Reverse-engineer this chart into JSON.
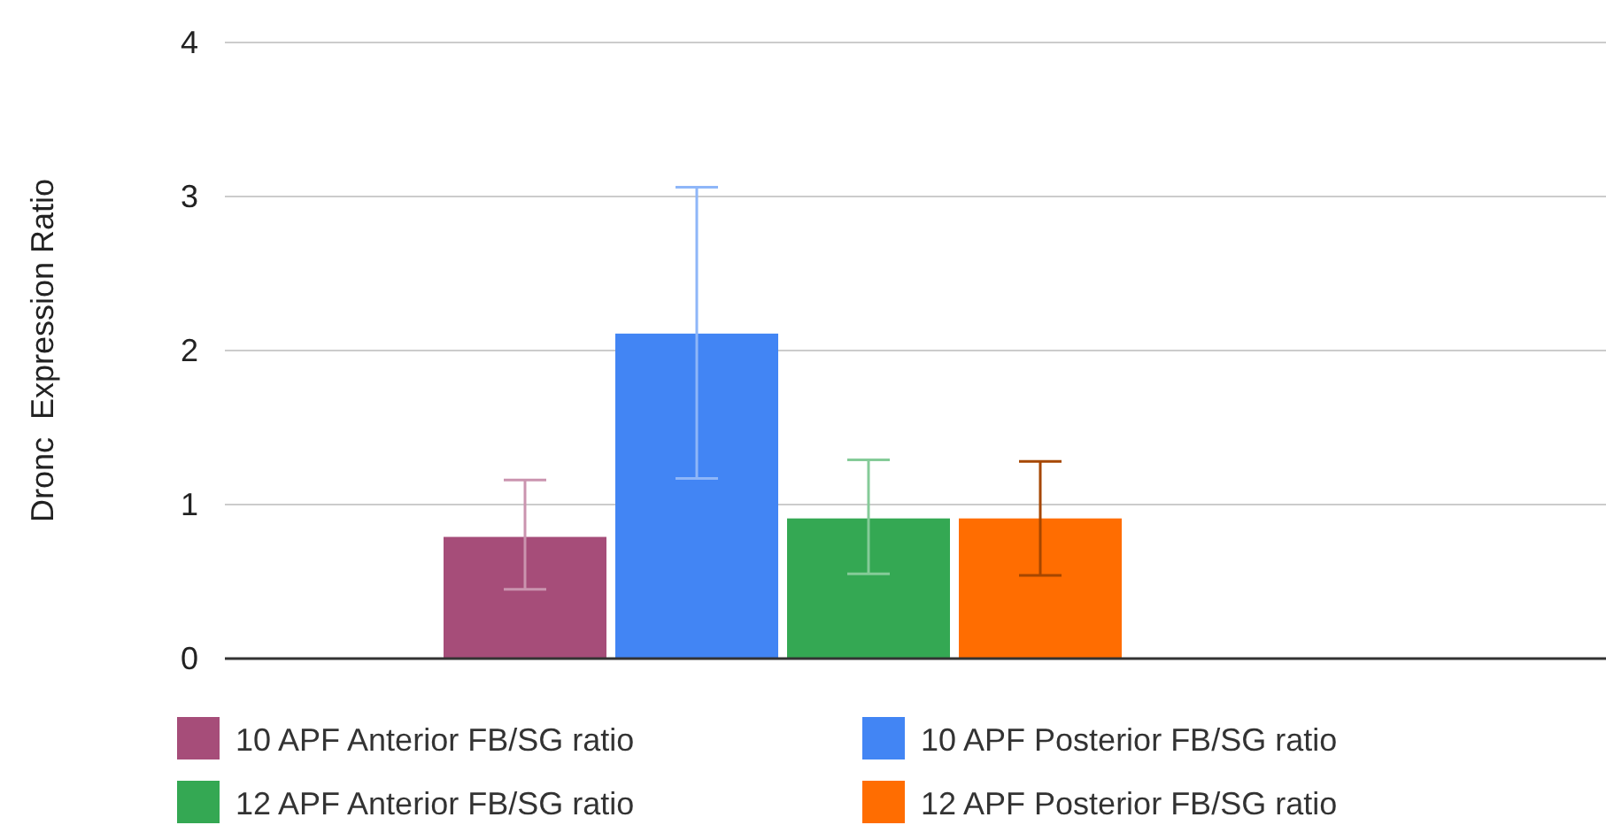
{
  "chart_data": {
    "type": "bar",
    "ylabel": "Dronc  Expression Ratio",
    "categories": [
      null
    ],
    "series": [
      {
        "name": "10 APF Anterior FB/SG ratio",
        "color": "#a64d79",
        "values": [
          0.79
        ],
        "errors": [
          [
            0.45,
            1.16
          ]
        ]
      },
      {
        "name": "10 APF Posterior FB/SG ratio",
        "color": "#4285f4",
        "values": [
          2.11
        ],
        "errors": [
          [
            1.17,
            3.06
          ]
        ]
      },
      {
        "name": "12 APF Anterior FB/SG ratio",
        "color": "#34a853",
        "values": [
          0.91
        ],
        "errors": [
          [
            0.55,
            1.29
          ]
        ]
      },
      {
        "name": "12 APF Posterior FB/SG ratio",
        "color": "#ff6d01",
        "values": [
          0.91
        ],
        "errors": [
          [
            0.54,
            1.28
          ]
        ]
      }
    ],
    "ylim": [
      0,
      4
    ],
    "yticks": [
      0,
      1,
      2,
      3,
      4
    ],
    "grid": "y",
    "legend": "bottom"
  }
}
